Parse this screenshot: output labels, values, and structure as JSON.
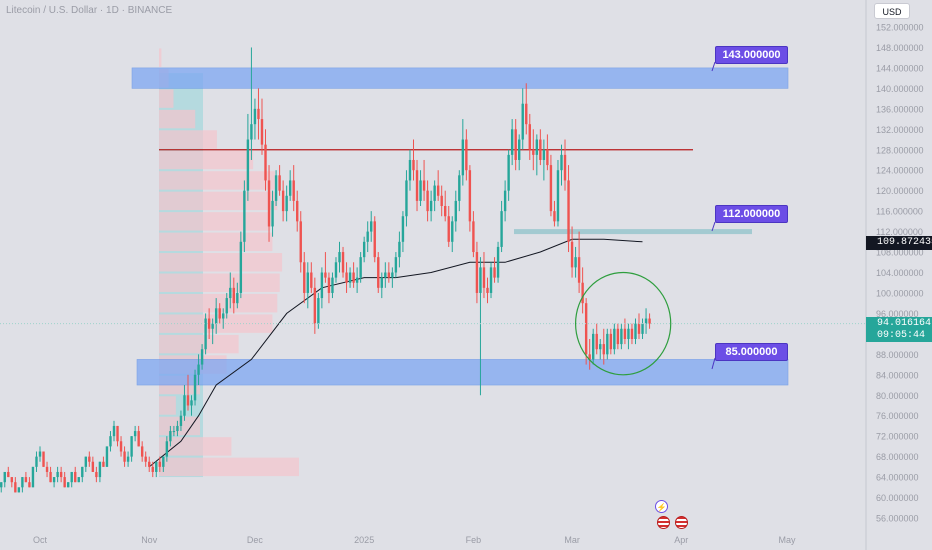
{
  "header": {
    "title": "Litecoin / U.S. Dollar · 1D · BINANCE"
  },
  "currency_button": "USD",
  "callouts": [
    {
      "label": "143.000000"
    },
    {
      "label": "112.000000"
    },
    {
      "label": "85.000000"
    }
  ],
  "price_tags": {
    "ma_value": "109.872435",
    "last_price": "94.016164",
    "countdown": "09:05:44"
  },
  "events": {
    "flash_icon": "lightning-icon",
    "flag_icon": "us-flag-icon"
  },
  "colors": {
    "up": "#26a69a",
    "down": "#ef5350",
    "zone": "#7ea7f2",
    "resistance_line": "#b71c1c",
    "callout": "#6c4ee6",
    "volume_profile_up": "#a7d8dc",
    "volume_profile_down": "#f4c4cc",
    "ellipse": "#2e9e3e",
    "last_price_tag": "#26a69a",
    "ma_tag": "#131722"
  },
  "chart_data": {
    "type": "candlestick",
    "title": "Litecoin / U.S. Dollar · 1D · BINANCE",
    "x_ticks": [
      "Oct",
      "Nov",
      "Dec",
      "2025",
      "Feb",
      "Mar",
      "Apr",
      "May"
    ],
    "y_ticks": [
      "56.000000",
      "60.000000",
      "64.000000",
      "68.000000",
      "72.000000",
      "76.000000",
      "80.000000",
      "84.000000",
      "88.000000",
      "92.000000",
      "96.000000",
      "100.000000",
      "104.000000",
      "108.000000",
      "112.000000",
      "116.000000",
      "120.000000",
      "124.000000",
      "128.000000",
      "132.000000",
      "136.000000",
      "140.000000",
      "144.000000",
      "148.000000",
      "152.000000"
    ],
    "ylim": [
      54,
      154
    ],
    "grid": false,
    "zones": [
      {
        "low": 140,
        "high": 144,
        "label": "143.000000"
      },
      {
        "low": 82,
        "high": 87,
        "label": "85.000000"
      }
    ],
    "levels": [
      {
        "value": 128,
        "kind": "resistance"
      },
      {
        "value": 112,
        "label": "112.000000"
      }
    ],
    "last_price": 94.016164,
    "ma_last": 109.872435,
    "series": [
      {
        "name": "moving_average",
        "x": [
          "2024-11-01",
          "2024-11-10",
          "2024-11-15",
          "2024-11-20",
          "2024-11-30",
          "2024-12-10",
          "2024-12-20",
          "2025-01-01",
          "2025-01-10",
          "2025-01-20",
          "2025-01-31",
          "2025-02-10",
          "2025-02-20",
          "2025-03-01",
          "2025-03-10",
          "2025-03-21"
        ],
        "values": [
          66,
          71,
          76,
          82,
          87,
          96,
          101,
          103,
          103,
          104,
          106,
          106,
          108,
          110.5,
          110.5,
          110
        ]
      }
    ],
    "candles": [
      [
        "2024-09-10",
        66,
        67,
        64,
        65
      ],
      [
        "2024-09-11",
        65,
        65,
        63,
        64
      ],
      [
        "2024-09-12",
        64,
        66,
        63,
        66
      ],
      [
        "2024-09-13",
        66,
        68,
        65,
        67
      ],
      [
        "2024-09-14",
        67,
        67,
        65,
        65
      ],
      [
        "2024-09-15",
        65,
        66,
        63,
        63
      ],
      [
        "2024-09-16",
        63,
        64,
        62,
        64
      ],
      [
        "2024-09-17",
        64,
        66,
        63,
        66
      ],
      [
        "2024-09-18",
        66,
        67,
        64,
        64
      ],
      [
        "2024-09-19",
        64,
        65,
        62,
        62
      ],
      [
        "2024-09-20",
        62,
        63,
        61,
        63
      ],
      [
        "2024-09-21",
        63,
        65,
        62,
        65
      ],
      [
        "2024-09-22",
        65,
        66,
        64,
        64
      ],
      [
        "2024-09-23",
        64,
        64,
        62,
        63
      ],
      [
        "2024-09-24",
        63,
        64,
        61,
        61
      ],
      [
        "2024-09-25",
        61,
        62,
        61,
        62
      ],
      [
        "2024-09-26",
        62,
        64,
        61,
        64
      ],
      [
        "2024-09-27",
        64,
        65,
        63,
        63
      ],
      [
        "2024-09-28",
        63,
        64,
        62,
        62
      ],
      [
        "2024-09-29",
        62,
        66,
        62,
        66
      ],
      [
        "2024-09-30",
        66,
        69,
        65,
        68
      ],
      [
        "2024-10-01",
        68,
        70,
        67,
        69
      ],
      [
        "2024-10-02",
        69,
        69,
        66,
        66
      ],
      [
        "2024-10-03",
        66,
        67,
        64,
        65
      ],
      [
        "2024-10-04",
        65,
        66,
        63,
        63
      ],
      [
        "2024-10-05",
        63,
        64,
        62,
        64
      ],
      [
        "2024-10-06",
        64,
        66,
        63,
        65
      ],
      [
        "2024-10-07",
        65,
        66,
        63,
        64
      ],
      [
        "2024-10-08",
        64,
        65,
        62,
        62
      ],
      [
        "2024-10-09",
        62,
        63,
        62,
        63
      ],
      [
        "2024-10-10",
        63,
        65,
        62,
        65
      ],
      [
        "2024-10-11",
        65,
        66,
        63,
        63
      ],
      [
        "2024-10-12",
        63,
        64,
        63,
        64
      ],
      [
        "2024-10-13",
        64,
        66,
        63,
        66
      ],
      [
        "2024-10-14",
        66,
        68,
        65,
        68
      ],
      [
        "2024-10-15",
        68,
        69,
        66,
        67
      ],
      [
        "2024-10-16",
        67,
        68,
        65,
        65
      ],
      [
        "2024-10-17",
        65,
        66,
        63,
        64
      ],
      [
        "2024-10-18",
        64,
        67,
        63,
        67
      ],
      [
        "2024-10-19",
        67,
        68,
        66,
        66
      ],
      [
        "2024-10-20",
        66,
        70,
        66,
        70
      ],
      [
        "2024-10-21",
        70,
        73,
        69,
        72
      ],
      [
        "2024-10-22",
        72,
        75,
        71,
        74
      ],
      [
        "2024-10-23",
        74,
        74,
        70,
        71
      ],
      [
        "2024-10-24",
        71,
        72,
        68,
        69
      ],
      [
        "2024-10-25",
        69,
        70,
        66,
        67
      ],
      [
        "2024-10-26",
        67,
        69,
        66,
        68
      ],
      [
        "2024-10-27",
        68,
        72,
        67,
        72
      ],
      [
        "2024-10-28",
        72,
        74,
        71,
        73
      ],
      [
        "2024-10-29",
        73,
        74,
        70,
        70
      ],
      [
        "2024-10-30",
        70,
        71,
        67,
        68
      ],
      [
        "2024-10-31",
        68,
        69,
        66,
        67
      ],
      [
        "2024-11-01",
        67,
        68,
        65,
        66
      ],
      [
        "2024-11-02",
        66,
        67,
        64,
        65
      ],
      [
        "2024-11-03",
        65,
        67,
        64,
        67
      ],
      [
        "2024-11-04",
        67,
        68,
        65,
        66
      ],
      [
        "2024-11-05",
        66,
        68,
        65,
        68
      ],
      [
        "2024-11-06",
        68,
        72,
        67,
        71
      ],
      [
        "2024-11-07",
        71,
        74,
        70,
        73
      ],
      [
        "2024-11-08",
        73,
        74,
        72,
        73
      ],
      [
        "2024-11-09",
        73,
        75,
        72,
        74
      ],
      [
        "2024-11-10",
        74,
        77,
        73,
        76
      ],
      [
        "2024-11-11",
        76,
        82,
        75,
        80
      ],
      [
        "2024-11-12",
        80,
        84,
        77,
        78
      ],
      [
        "2024-11-13",
        78,
        80,
        76,
        79
      ],
      [
        "2024-11-14",
        79,
        85,
        78,
        84
      ],
      [
        "2024-11-15",
        84,
        88,
        82,
        86
      ],
      [
        "2024-11-16",
        86,
        90,
        85,
        89
      ],
      [
        "2024-11-17",
        89,
        96,
        88,
        95
      ],
      [
        "2024-11-18",
        95,
        97,
        91,
        93
      ],
      [
        "2024-11-19",
        93,
        95,
        90,
        94
      ],
      [
        "2024-11-20",
        94,
        99,
        92,
        97
      ],
      [
        "2024-11-21",
        97,
        98,
        94,
        95
      ],
      [
        "2024-11-22",
        95,
        97,
        93,
        96
      ],
      [
        "2024-11-23",
        96,
        100,
        95,
        99
      ],
      [
        "2024-11-24",
        99,
        104,
        97,
        101
      ],
      [
        "2024-11-25",
        101,
        103,
        96,
        98
      ],
      [
        "2024-11-26",
        98,
        102,
        97,
        100
      ],
      [
        "2024-11-27",
        100,
        112,
        99,
        110
      ],
      [
        "2024-11-28",
        110,
        122,
        108,
        120
      ],
      [
        "2024-11-29",
        120,
        135,
        118,
        130
      ],
      [
        "2024-11-30",
        130,
        148,
        126,
        133
      ],
      [
        "2024-12-01",
        133,
        138,
        130,
        136
      ],
      [
        "2024-12-02",
        136,
        140,
        130,
        134
      ],
      [
        "2024-12-03",
        134,
        138,
        127,
        129
      ],
      [
        "2024-12-04",
        129,
        132,
        120,
        122
      ],
      [
        "2024-12-05",
        122,
        125,
        110,
        113
      ],
      [
        "2024-12-06",
        113,
        120,
        111,
        118
      ],
      [
        "2024-12-07",
        118,
        124,
        117,
        123
      ],
      [
        "2024-12-08",
        123,
        125,
        119,
        120
      ],
      [
        "2024-12-09",
        120,
        122,
        114,
        116
      ],
      [
        "2024-12-10",
        116,
        121,
        114,
        119
      ],
      [
        "2024-12-11",
        119,
        124,
        118,
        122
      ],
      [
        "2024-12-12",
        122,
        125,
        116,
        118
      ],
      [
        "2024-12-13",
        118,
        120,
        112,
        114
      ],
      [
        "2024-12-14",
        114,
        116,
        104,
        106
      ],
      [
        "2024-12-15",
        106,
        108,
        98,
        100
      ],
      [
        "2024-12-16",
        100,
        106,
        97,
        104
      ],
      [
        "2024-12-17",
        104,
        106,
        100,
        101
      ],
      [
        "2024-12-18",
        101,
        103,
        92,
        94
      ],
      [
        "2024-12-19",
        94,
        100,
        93,
        99
      ],
      [
        "2024-12-20",
        99,
        105,
        97,
        104
      ],
      [
        "2024-12-21",
        104,
        108,
        102,
        103
      ],
      [
        "2024-12-22",
        103,
        104,
        98,
        100
      ],
      [
        "2024-12-23",
        100,
        104,
        99,
        103
      ],
      [
        "2024-12-24",
        103,
        107,
        102,
        106
      ],
      [
        "2024-12-25",
        106,
        110,
        104,
        108
      ],
      [
        "2024-12-26",
        108,
        109,
        103,
        104
      ],
      [
        "2024-12-27",
        104,
        106,
        100,
        102
      ],
      [
        "2024-12-28",
        102,
        105,
        101,
        104
      ],
      [
        "2024-12-29",
        104,
        106,
        101,
        102
      ],
      [
        "2024-12-30",
        102,
        105,
        100,
        103
      ],
      [
        "2024-12-31",
        103,
        108,
        102,
        107
      ],
      [
        "2025-01-01",
        107,
        111,
        106,
        110
      ],
      [
        "2025-01-02",
        110,
        114,
        108,
        112
      ],
      [
        "2025-01-03",
        112,
        116,
        110,
        114
      ],
      [
        "2025-01-04",
        114,
        115,
        106,
        107
      ],
      [
        "2025-01-05",
        107,
        108,
        100,
        101
      ],
      [
        "2025-01-06",
        101,
        104,
        99,
        103
      ],
      [
        "2025-01-07",
        103,
        106,
        101,
        104
      ],
      [
        "2025-01-08",
        104,
        106,
        102,
        103
      ],
      [
        "2025-01-09",
        103,
        105,
        101,
        104
      ],
      [
        "2025-01-10",
        104,
        108,
        103,
        107
      ],
      [
        "2025-01-11",
        107,
        112,
        105,
        110
      ],
      [
        "2025-01-12",
        110,
        116,
        108,
        115
      ],
      [
        "2025-01-13",
        115,
        124,
        113,
        122
      ],
      [
        "2025-01-14",
        122,
        128,
        120,
        126
      ],
      [
        "2025-01-15",
        126,
        130,
        122,
        124
      ],
      [
        "2025-01-16",
        124,
        126,
        116,
        118
      ],
      [
        "2025-01-17",
        118,
        124,
        117,
        122
      ],
      [
        "2025-01-18",
        122,
        126,
        118,
        120
      ],
      [
        "2025-01-19",
        120,
        122,
        114,
        116
      ],
      [
        "2025-01-20",
        116,
        120,
        114,
        118
      ],
      [
        "2025-01-21",
        118,
        122,
        116,
        121
      ],
      [
        "2025-01-22",
        121,
        124,
        118,
        119
      ],
      [
        "2025-01-23",
        119,
        121,
        115,
        117
      ],
      [
        "2025-01-24",
        117,
        120,
        114,
        115
      ],
      [
        "2025-01-25",
        115,
        117,
        109,
        110
      ],
      [
        "2025-01-26",
        110,
        115,
        108,
        114
      ],
      [
        "2025-01-27",
        114,
        120,
        112,
        118
      ],
      [
        "2025-01-28",
        118,
        124,
        116,
        123
      ],
      [
        "2025-01-29",
        123,
        134,
        121,
        130
      ],
      [
        "2025-01-30",
        130,
        132,
        122,
        124
      ],
      [
        "2025-01-31",
        124,
        125,
        112,
        114
      ],
      [
        "2025-02-01",
        114,
        116,
        107,
        108
      ],
      [
        "2025-02-02",
        108,
        110,
        98,
        100
      ],
      [
        "2025-02-03",
        100,
        107,
        80,
        105
      ],
      [
        "2025-02-04",
        105,
        108,
        99,
        101
      ],
      [
        "2025-02-05",
        101,
        103,
        98,
        100
      ],
      [
        "2025-02-06",
        100,
        106,
        99,
        105
      ],
      [
        "2025-02-07",
        105,
        107,
        102,
        103
      ],
      [
        "2025-02-08",
        103,
        110,
        102,
        109
      ],
      [
        "2025-02-09",
        109,
        118,
        108,
        116
      ],
      [
        "2025-02-10",
        116,
        122,
        114,
        120
      ],
      [
        "2025-02-11",
        120,
        128,
        118,
        127
      ],
      [
        "2025-02-12",
        127,
        134,
        125,
        132
      ],
      [
        "2025-02-13",
        132,
        134,
        124,
        126
      ],
      [
        "2025-02-14",
        126,
        131,
        124,
        130
      ],
      [
        "2025-02-15",
        130,
        140,
        128,
        137
      ],
      [
        "2025-02-16",
        137,
        141,
        131,
        133
      ],
      [
        "2025-02-17",
        133,
        135,
        126,
        128
      ],
      [
        "2025-02-18",
        128,
        132,
        124,
        127
      ],
      [
        "2025-02-19",
        127,
        131,
        123,
        130
      ],
      [
        "2025-02-20",
        130,
        132,
        125,
        126
      ],
      [
        "2025-02-21",
        126,
        130,
        122,
        128
      ],
      [
        "2025-02-22",
        128,
        131,
        124,
        125
      ],
      [
        "2025-02-23",
        125,
        127,
        115,
        116
      ],
      [
        "2025-02-24",
        116,
        118,
        113,
        114
      ],
      [
        "2025-02-25",
        114,
        126,
        113,
        124
      ],
      [
        "2025-02-26",
        124,
        129,
        121,
        127
      ],
      [
        "2025-02-27",
        127,
        130,
        120,
        122
      ],
      [
        "2025-02-28",
        122,
        125,
        108,
        110
      ],
      [
        "2025-03-01",
        110,
        113,
        103,
        105
      ],
      [
        "2025-03-02",
        105,
        109,
        103,
        107
      ],
      [
        "2025-03-03",
        107,
        112,
        100,
        102
      ],
      [
        "2025-03-04",
        102,
        105,
        96,
        98
      ],
      [
        "2025-03-05",
        98,
        99,
        86,
        88
      ],
      [
        "2025-03-06",
        88,
        91,
        85,
        87
      ],
      [
        "2025-03-07",
        87,
        93,
        86,
        92
      ],
      [
        "2025-03-08",
        92,
        94,
        88,
        89
      ],
      [
        "2025-03-09",
        89,
        91,
        87,
        90
      ],
      [
        "2025-03-10",
        90,
        93,
        86,
        88
      ],
      [
        "2025-03-11",
        88,
        93,
        87,
        92
      ],
      [
        "2025-03-12",
        92,
        93,
        88,
        89
      ],
      [
        "2025-03-13",
        89,
        94,
        88,
        93
      ],
      [
        "2025-03-14",
        93,
        94,
        89,
        90
      ],
      [
        "2025-03-15",
        90,
        94,
        89,
        93
      ],
      [
        "2025-03-16",
        93,
        95,
        90,
        91
      ],
      [
        "2025-03-17",
        91,
        94,
        89,
        93
      ],
      [
        "2025-03-18",
        93,
        94,
        90,
        91
      ],
      [
        "2025-03-19",
        91,
        95,
        90,
        94
      ],
      [
        "2025-03-20",
        94,
        96,
        91,
        92
      ],
      [
        "2025-03-21",
        92,
        95,
        91,
        94
      ],
      [
        "2025-03-22",
        94,
        97,
        92,
        95
      ],
      [
        "2025-03-23",
        95,
        96,
        93,
        94
      ]
    ]
  }
}
